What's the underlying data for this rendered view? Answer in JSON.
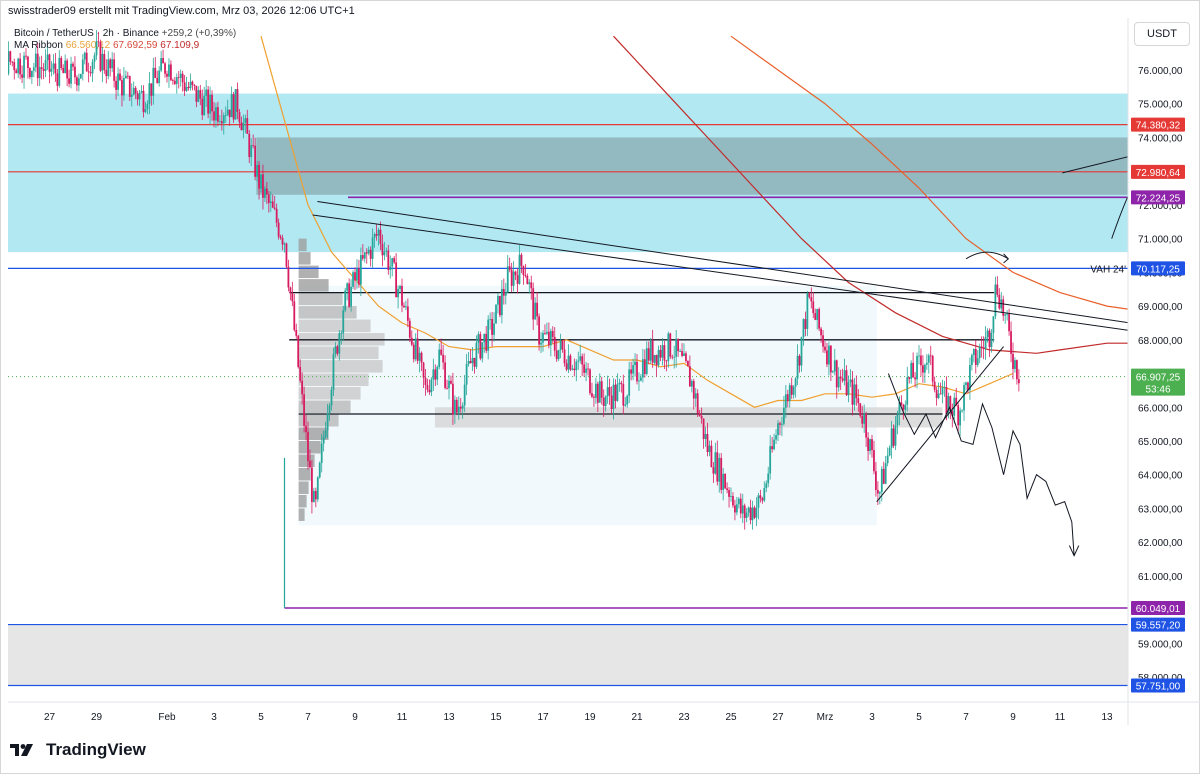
{
  "header": {
    "publisher": "swisstrader09 erstellt mit TradingView.com, Mrz 03, 2026 12:06 UTC+1",
    "symbol": "Bitcoin / TetherUS · 2h · Binance",
    "change": "+259,2 (+0,39%)",
    "ma_label": "MA Ribbon",
    "ma_values": [
      "66.560,12",
      "67.692,59",
      "67.109,9"
    ]
  },
  "currency": "USDT",
  "brand": "TradingView",
  "chart_data": {
    "type": "candlestick",
    "title": "Bitcoin / TetherUS · 2h · Binance",
    "ylim": [
      57100,
      77300
    ],
    "y_ticks": [
      "76.000,00",
      "75.000,00",
      "74.000,00",
      "73.000,00",
      "72.000,00",
      "71.000,00",
      "70.000,00",
      "69.000,00",
      "68.000,00",
      "67.000,00",
      "66.000,00",
      "65.000,00",
      "64.000,00",
      "63.000,00",
      "62.000,00",
      "61.000,00",
      "60.000,00",
      "59.000,00",
      "58.000,00"
    ],
    "y_tick_values": [
      76000,
      75000,
      74000,
      73000,
      72000,
      71000,
      70000,
      69000,
      68000,
      67000,
      66000,
      65000,
      64000,
      63000,
      62000,
      61000,
      60000,
      59000,
      58000
    ],
    "x_ticks": [
      "27",
      "29",
      "Feb",
      "3",
      "5",
      "7",
      "9",
      "11",
      "13",
      "15",
      "17",
      "19",
      "21",
      "23",
      "25",
      "27",
      "Mrz",
      "3",
      "5",
      "7",
      "9",
      "11",
      "13"
    ],
    "x_tick_days": [
      -5,
      -3,
      0,
      2,
      4,
      6,
      8,
      10,
      12,
      14,
      16,
      18,
      20,
      22,
      24,
      26,
      28,
      30,
      32,
      34,
      36,
      38,
      40
    ],
    "price_labels": [
      {
        "text": "74.380,32",
        "value": 74380.32,
        "color": "#e53935"
      },
      {
        "text": "72.980,64",
        "value": 72980.64,
        "color": "#e53935"
      },
      {
        "text": "72.224,25",
        "value": 72224.25,
        "color": "#8e24aa"
      },
      {
        "text": "70.117,25",
        "value": 70117.25,
        "color": "#1e53e5",
        "tag": "VAH 24'"
      },
      {
        "text": "60.049,01",
        "value": 60049.01,
        "color": "#8e24aa"
      },
      {
        "text": "59.557,20",
        "value": 59557.2,
        "color": "#1e53e5"
      },
      {
        "text": "57.751,00",
        "value": 57751.0,
        "color": "#1e53e5"
      }
    ],
    "current_price": {
      "text": "66.907,25",
      "countdown": "53:46",
      "value": 66907.25,
      "color": "#4caf50"
    },
    "zones": [
      {
        "from": 70600,
        "to": 75300,
        "color": "#a8e6f0",
        "label": "resistance zone"
      },
      {
        "from": 72300,
        "to": 74000,
        "color": "#8aa9b0",
        "label": "inner zone"
      },
      {
        "from": 57751,
        "to": 59557.2,
        "color": "#e3e3e3",
        "label": "support zone"
      }
    ],
    "horizontal_levels": [
      69400,
      68000,
      65800
    ],
    "series": [
      {
        "type": "candles",
        "up_color": "#26a69a",
        "down_color": "#d81b60",
        "close_path": [
          [
            -10,
            76500
          ],
          [
            -6,
            76200
          ],
          [
            -4,
            75800
          ],
          [
            -3,
            76500
          ],
          [
            -2,
            75600
          ],
          [
            -1,
            75200
          ],
          [
            0,
            76200
          ],
          [
            1,
            75400
          ],
          [
            2,
            74800
          ],
          [
            3,
            75000
          ],
          [
            4,
            72500
          ],
          [
            5,
            71000
          ],
          [
            6,
            64500
          ],
          [
            6.3,
            62800
          ],
          [
            6.8,
            66000
          ],
          [
            7.5,
            69000
          ],
          [
            8.3,
            70200
          ],
          [
            9,
            71200
          ],
          [
            10,
            69200
          ],
          [
            11,
            66500
          ],
          [
            11.6,
            67600
          ],
          [
            12.3,
            65800
          ],
          [
            13,
            67500
          ],
          [
            13.8,
            68300
          ],
          [
            14.5,
            69800
          ],
          [
            15.2,
            70300
          ],
          [
            15.8,
            68200
          ],
          [
            16.5,
            67800
          ],
          [
            17.5,
            67300
          ],
          [
            18.5,
            66300
          ],
          [
            19.5,
            66500
          ],
          [
            20.5,
            67600
          ],
          [
            21.5,
            67800
          ],
          [
            22.3,
            66800
          ],
          [
            23,
            64800
          ],
          [
            23.8,
            63700
          ],
          [
            24.5,
            62800
          ],
          [
            25.3,
            63200
          ],
          [
            26,
            65500
          ],
          [
            26.8,
            67200
          ],
          [
            27.3,
            69200
          ],
          [
            27.8,
            68200
          ],
          [
            28.5,
            67000
          ],
          [
            29.3,
            66300
          ],
          [
            29.7,
            65600
          ],
          [
            30.3,
            63400
          ],
          [
            30.8,
            65000
          ],
          [
            31.5,
            66700
          ],
          [
            32.3,
            67500
          ],
          [
            33,
            66200
          ],
          [
            33.7,
            65900
          ],
          [
            34.3,
            67300
          ],
          [
            35,
            68200
          ],
          [
            35.3,
            69700
          ],
          [
            35.7,
            68500
          ],
          [
            36,
            67500
          ],
          [
            36.3,
            66900
          ]
        ]
      },
      {
        "type": "line",
        "name": "MA 66.560,12",
        "color": "#f0a030",
        "points": [
          [
            4,
            77000
          ],
          [
            6,
            72000
          ],
          [
            7,
            70600
          ],
          [
            8,
            69800
          ],
          [
            9,
            69000
          ],
          [
            10,
            68500
          ],
          [
            11,
            68200
          ],
          [
            12,
            67800
          ],
          [
            13,
            67700
          ],
          [
            14,
            67800
          ],
          [
            16,
            67800
          ],
          [
            17,
            68000
          ],
          [
            18,
            67700
          ],
          [
            19,
            67400
          ],
          [
            20,
            67400
          ],
          [
            21,
            67200
          ],
          [
            22,
            67300
          ],
          [
            23,
            66800
          ],
          [
            24,
            66400
          ],
          [
            25,
            66000
          ],
          [
            26,
            66200
          ],
          [
            27,
            66200
          ],
          [
            28,
            66400
          ],
          [
            29,
            66400
          ],
          [
            30,
            66300
          ],
          [
            31,
            66400
          ],
          [
            32,
            66700
          ],
          [
            33,
            66600
          ],
          [
            34,
            66400
          ],
          [
            35,
            66700
          ],
          [
            36,
            67000
          ]
        ]
      },
      {
        "type": "line",
        "name": "MA 67.692,59",
        "color": "#e8602a",
        "points": [
          [
            24,
            77000
          ],
          [
            26,
            76000
          ],
          [
            28,
            75000
          ],
          [
            30,
            73800
          ],
          [
            32,
            72500
          ],
          [
            34,
            71000
          ],
          [
            36,
            70000
          ],
          [
            38,
            69400
          ],
          [
            40,
            69000
          ],
          [
            42,
            68800
          ],
          [
            43,
            68700
          ],
          [
            44,
            68600
          ],
          [
            45,
            68500
          ],
          [
            47,
            68200
          ],
          [
            49,
            68100
          ],
          [
            51,
            68000
          ],
          [
            53,
            67900
          ],
          [
            55,
            67800
          ],
          [
            57,
            67700
          ],
          [
            59,
            67650
          ],
          [
            61,
            67600
          ],
          [
            63,
            67600
          ],
          [
            65,
            67500
          ],
          [
            66,
            67400
          ],
          [
            67,
            67400
          ],
          [
            69,
            67300
          ],
          [
            70,
            67100
          ]
        ]
      },
      {
        "type": "line",
        "name": "MA 67.109,9",
        "color": "#c22a2a",
        "points": [
          [
            19,
            77000
          ],
          [
            21,
            75500
          ],
          [
            23,
            74000
          ],
          [
            25,
            72500
          ],
          [
            27,
            71000
          ],
          [
            29,
            69700
          ],
          [
            31,
            68800
          ],
          [
            33,
            68100
          ],
          [
            35,
            67700
          ],
          [
            37,
            67600
          ],
          [
            38,
            67700
          ],
          [
            40,
            67900
          ],
          [
            42,
            67900
          ],
          [
            44,
            67800
          ],
          [
            46,
            67700
          ],
          [
            48,
            67600
          ],
          [
            50,
            67600
          ],
          [
            52,
            67500
          ],
          [
            54,
            67300
          ],
          [
            56,
            67200
          ],
          [
            58,
            67100
          ],
          [
            60,
            67050
          ],
          [
            62,
            67000
          ],
          [
            64,
            67100
          ],
          [
            66,
            67200
          ],
          [
            68,
            67000
          ],
          [
            70,
            67000
          ]
        ]
      }
    ],
    "annotations": [
      {
        "type": "trendline",
        "from": [
          6.4,
          72100
        ],
        "to": [
          41,
          68500
        ]
      },
      {
        "type": "trendline",
        "from": [
          6.2,
          71700
        ],
        "to": [
          44.8,
          67900
        ]
      },
      {
        "type": "trendline",
        "from": [
          30.2,
          63200
        ],
        "to": [
          35.6,
          67800
        ]
      },
      {
        "type": "projection",
        "direction": "down",
        "target": 62000
      },
      {
        "type": "projection",
        "direction": "up",
        "target": 73000
      }
    ]
  }
}
